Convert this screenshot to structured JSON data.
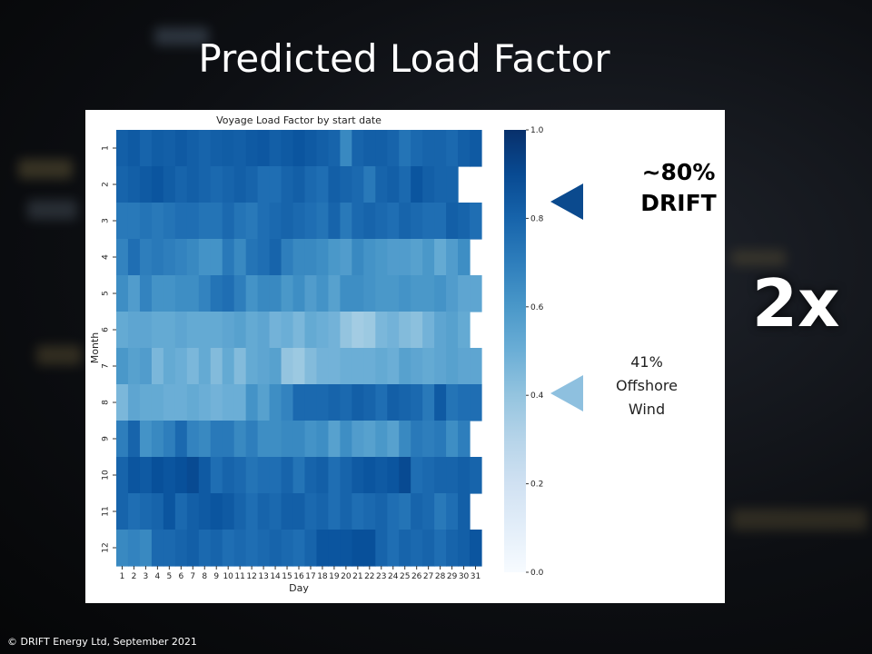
{
  "slide": {
    "title": "Predicted Load Factor",
    "multiplier": "2x",
    "copyright": "© DRIFT Energy Ltd, September  2021"
  },
  "callouts": {
    "drift_value": "~80%",
    "drift_label": "DRIFT",
    "wind_value": "41%",
    "wind_label_1": "Offshore",
    "wind_label_2": "Wind"
  },
  "colors": {
    "drift_arrow": "#0b4a8e",
    "wind_arrow": "#8ec0df"
  },
  "chart_data": {
    "type": "heatmap",
    "title": "Voyage Load Factor by start date",
    "xlabel": "Day",
    "ylabel": "Month",
    "x": [
      1,
      2,
      3,
      4,
      5,
      6,
      7,
      8,
      9,
      10,
      11,
      12,
      13,
      14,
      15,
      16,
      17,
      18,
      19,
      20,
      21,
      22,
      23,
      24,
      25,
      26,
      27,
      28,
      29,
      30,
      31
    ],
    "y": [
      1,
      2,
      3,
      4,
      5,
      6,
      7,
      8,
      9,
      10,
      11,
      12
    ],
    "colorbar": {
      "min": 0.0,
      "max": 1.0,
      "ticks": [
        "0.0",
        "0.2",
        "0.4",
        "0.6",
        "0.8",
        "1.0"
      ],
      "colormap": "Blues"
    },
    "values": [
      [
        0.82,
        0.84,
        0.8,
        0.83,
        0.82,
        0.84,
        0.82,
        0.8,
        0.82,
        0.83,
        0.82,
        0.84,
        0.85,
        0.82,
        0.84,
        0.86,
        0.84,
        0.82,
        0.8,
        0.66,
        0.8,
        0.82,
        0.82,
        0.8,
        0.74,
        0.78,
        0.8,
        0.8,
        0.78,
        0.82,
        0.84
      ],
      [
        0.8,
        0.82,
        0.84,
        0.86,
        0.83,
        0.8,
        0.82,
        0.8,
        0.78,
        0.8,
        0.82,
        0.8,
        0.76,
        0.76,
        0.8,
        0.82,
        0.78,
        0.76,
        0.82,
        0.8,
        0.78,
        0.72,
        0.8,
        0.82,
        0.78,
        0.86,
        0.82,
        0.8,
        0.8,
        null,
        null
      ],
      [
        0.72,
        0.72,
        0.74,
        0.72,
        0.74,
        0.76,
        0.76,
        0.74,
        0.74,
        0.78,
        0.74,
        0.72,
        0.76,
        0.78,
        0.8,
        0.78,
        0.76,
        0.74,
        0.8,
        0.72,
        0.78,
        0.8,
        0.78,
        0.76,
        0.8,
        0.78,
        0.76,
        0.76,
        0.82,
        0.8,
        0.76
      ],
      [
        0.68,
        0.76,
        0.7,
        0.72,
        0.7,
        0.68,
        0.66,
        0.62,
        0.62,
        0.72,
        0.66,
        0.74,
        0.76,
        0.8,
        0.7,
        0.66,
        0.66,
        0.64,
        0.6,
        0.58,
        0.66,
        0.62,
        0.6,
        0.58,
        0.58,
        0.56,
        0.6,
        0.52,
        0.58,
        0.64,
        null
      ],
      [
        0.64,
        0.58,
        0.68,
        0.62,
        0.62,
        0.64,
        0.64,
        0.68,
        0.74,
        0.76,
        0.7,
        0.62,
        0.66,
        0.66,
        0.6,
        0.64,
        0.58,
        0.62,
        0.56,
        0.64,
        0.64,
        0.62,
        0.6,
        0.6,
        0.62,
        0.6,
        0.6,
        0.62,
        0.58,
        0.54,
        0.54
      ],
      [
        0.52,
        0.54,
        0.54,
        0.52,
        0.52,
        0.54,
        0.52,
        0.52,
        0.52,
        0.54,
        0.56,
        0.52,
        0.54,
        0.48,
        0.5,
        0.46,
        0.52,
        0.5,
        0.48,
        0.4,
        0.36,
        0.38,
        0.46,
        0.48,
        0.44,
        0.42,
        0.48,
        0.54,
        0.56,
        0.52,
        null
      ],
      [
        0.6,
        0.56,
        0.58,
        0.46,
        0.52,
        0.5,
        0.46,
        0.52,
        0.44,
        0.52,
        0.44,
        0.52,
        0.54,
        0.56,
        0.4,
        0.38,
        0.44,
        0.48,
        0.48,
        0.5,
        0.5,
        0.5,
        0.52,
        0.5,
        0.56,
        0.54,
        0.52,
        0.54,
        0.56,
        0.54,
        0.54
      ],
      [
        0.46,
        0.54,
        0.52,
        0.52,
        0.5,
        0.5,
        0.52,
        0.5,
        0.48,
        0.5,
        0.5,
        0.62,
        0.56,
        0.64,
        0.68,
        0.78,
        0.78,
        0.78,
        0.8,
        0.78,
        0.82,
        0.8,
        0.76,
        0.82,
        0.8,
        0.78,
        0.72,
        0.84,
        0.74,
        0.76,
        0.76
      ],
      [
        0.7,
        0.8,
        0.62,
        0.66,
        0.7,
        0.78,
        0.68,
        0.66,
        0.72,
        0.72,
        0.66,
        0.7,
        0.64,
        0.64,
        0.66,
        0.66,
        0.62,
        0.64,
        0.56,
        0.64,
        0.58,
        0.56,
        0.6,
        0.56,
        0.66,
        0.72,
        0.7,
        0.72,
        0.64,
        0.7,
        null
      ],
      [
        0.8,
        0.86,
        0.84,
        0.88,
        0.86,
        0.88,
        0.9,
        0.84,
        0.76,
        0.8,
        0.78,
        0.74,
        0.76,
        0.76,
        0.8,
        0.74,
        0.8,
        0.82,
        0.76,
        0.8,
        0.84,
        0.86,
        0.84,
        0.86,
        0.9,
        0.76,
        0.78,
        0.8,
        0.8,
        0.82,
        0.8
      ],
      [
        0.8,
        0.76,
        0.78,
        0.8,
        0.86,
        0.78,
        0.82,
        0.84,
        0.86,
        0.84,
        0.8,
        0.76,
        0.8,
        0.78,
        0.82,
        0.82,
        0.78,
        0.8,
        0.76,
        0.8,
        0.76,
        0.78,
        0.8,
        0.76,
        0.74,
        0.8,
        0.78,
        0.72,
        0.76,
        0.82,
        null
      ],
      [
        0.66,
        0.68,
        0.66,
        0.78,
        0.78,
        0.8,
        0.82,
        0.78,
        0.8,
        0.76,
        0.78,
        0.76,
        0.78,
        0.8,
        0.78,
        0.76,
        0.8,
        0.86,
        0.86,
        0.86,
        0.88,
        0.88,
        0.8,
        0.76,
        0.8,
        0.78,
        0.8,
        0.76,
        0.8,
        0.82,
        0.86
      ]
    ]
  }
}
